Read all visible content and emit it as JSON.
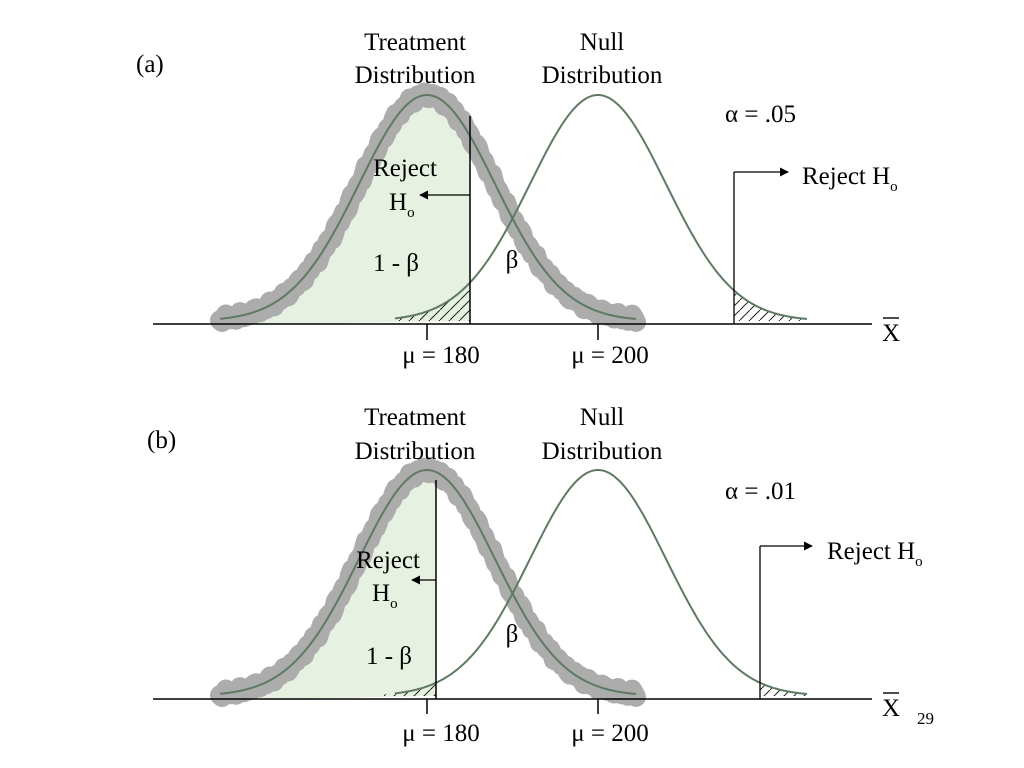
{
  "slide_number": "29",
  "colors": {
    "curve": "#5f7a62",
    "halo": "#a8a8a8",
    "fill": "#e7f1e2",
    "axis": "#000000"
  },
  "panels": [
    {
      "label": "(a)",
      "alpha_text": "α = .05",
      "treatment_title": [
        "Treatment",
        "Distribution"
      ],
      "null_title": [
        "Null",
        "Distribution"
      ],
      "reject_left": [
        "Reject",
        "H",
        "o"
      ],
      "reject_right": [
        "Reject H",
        "o"
      ],
      "power_label": "1 - β",
      "beta_label": "β",
      "mu_treatment": "μ = 180",
      "mu_null": "μ = 200",
      "axis_label": "X"
    },
    {
      "label": "(b)",
      "alpha_text": "α = .01",
      "treatment_title": [
        "Treatment",
        "Distribution"
      ],
      "null_title": [
        "Null",
        "Distribution"
      ],
      "reject_left": [
        "Reject",
        "H",
        "o"
      ],
      "reject_right": [
        "Reject H",
        "o"
      ],
      "power_label": "1 - β",
      "beta_label": "β",
      "mu_treatment": "μ = 180",
      "mu_null": "μ = 200",
      "axis_label": "X"
    }
  ]
}
